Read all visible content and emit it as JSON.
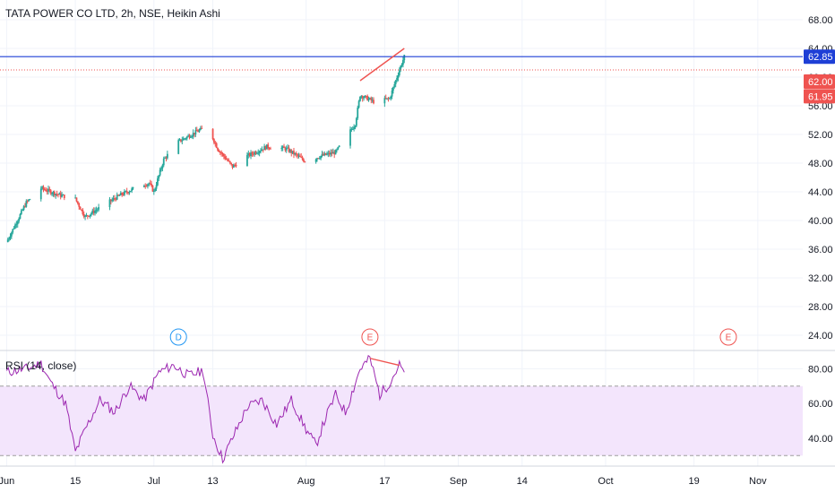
{
  "chart_data": [
    {
      "type": "candlestick",
      "title": "TATA POWER CO LTD, 2h, NSE, Heikin Ashi",
      "ylim": [
        22,
        70
      ],
      "yticks": [
        "24.00",
        "28.00",
        "32.00",
        "36.00",
        "40.00",
        "44.00",
        "48.00",
        "52.00",
        "56.00",
        "60.00",
        "64.00",
        "68.00"
      ],
      "price_levels": [
        {
          "value": 62.85,
          "label": "62.85",
          "color": "#1e3fd6",
          "style": "solid"
        },
        {
          "value": 62.0,
          "label": "62.00",
          "color": "#ef5350",
          "style": "dotted"
        },
        {
          "value": 61.95,
          "label": "61.95",
          "color": "#ef5350",
          "style": "none"
        }
      ],
      "trendline": {
        "from": {
          "date": "Aug 12",
          "value": 59.5
        },
        "to": {
          "date": "Aug 21",
          "value": 64.0
        },
        "color": "#ef5350"
      },
      "events": [
        {
          "label": "D",
          "date": "Jul 6",
          "color": "#2196f3"
        },
        {
          "label": "E",
          "date": "Aug 14",
          "color": "#ef5350"
        },
        {
          "label": "E",
          "date": "Oct 26",
          "color": "#ef5350"
        }
      ],
      "up_color": "#26a69a",
      "down_color": "#ef5350",
      "price_path": [
        {
          "date": "Jun 1",
          "value": 37.0
        },
        {
          "date": "Jun 5",
          "value": 42.5
        },
        {
          "date": "Jun 8",
          "value": 44.5
        },
        {
          "date": "Jun 12",
          "value": 43.5
        },
        {
          "date": "Jun 15",
          "value": 43.0
        },
        {
          "date": "Jun 17",
          "value": 40.5
        },
        {
          "date": "Jun 20",
          "value": 41.8
        },
        {
          "date": "Jun 24",
          "value": 43.5
        },
        {
          "date": "Jun 28",
          "value": 44.8
        },
        {
          "date": "Jun 30",
          "value": 45.2
        },
        {
          "date": "Jul 1",
          "value": 44.0
        },
        {
          "date": "Jul 3",
          "value": 48.5
        },
        {
          "date": "Jul 6",
          "value": 51.0
        },
        {
          "date": "Jul 10",
          "value": 52.5
        },
        {
          "date": "Jul 12",
          "value": 53.0
        },
        {
          "date": "Jul 14",
          "value": 50.0
        },
        {
          "date": "Jul 17",
          "value": 47.5
        },
        {
          "date": "Jul 20",
          "value": 49.0
        },
        {
          "date": "Jul 24",
          "value": 50.3
        },
        {
          "date": "Jul 28",
          "value": 50.0
        },
        {
          "date": "Aug 1",
          "value": 48.2
        },
        {
          "date": "Aug 4",
          "value": 49.0
        },
        {
          "date": "Aug 7",
          "value": 49.5
        },
        {
          "date": "Aug 9",
          "value": 51.5
        },
        {
          "date": "Aug 11",
          "value": 53.5
        },
        {
          "date": "Aug 12",
          "value": 57.5
        },
        {
          "date": "Aug 15",
          "value": 56.5
        },
        {
          "date": "Aug 18",
          "value": 57.0
        },
        {
          "date": "Aug 20",
          "value": 61.0
        },
        {
          "date": "Aug 21",
          "value": 62.85
        }
      ]
    },
    {
      "type": "line",
      "title": "RSI (14, close)",
      "ylim": [
        25,
        90
      ],
      "yticks": [
        "40.00",
        "60.00",
        "80.00"
      ],
      "band": {
        "upper": 70,
        "lower": 30,
        "fill": "#f3e5fc",
        "line_color": "#9e9e9e"
      },
      "line_color": "#9c27b0",
      "trendline": {
        "from": {
          "date": "Aug 14",
          "value": 86
        },
        "to": {
          "date": "Aug 20",
          "value": 82
        },
        "color": "#ef5350"
      },
      "series": [
        {
          "date": "Jun 1",
          "value": 78
        },
        {
          "date": "Jun 5",
          "value": 80
        },
        {
          "date": "Jun 8",
          "value": 83
        },
        {
          "date": "Jun 10",
          "value": 72
        },
        {
          "date": "Jun 13",
          "value": 60
        },
        {
          "date": "Jun 15",
          "value": 32
        },
        {
          "date": "Jun 17",
          "value": 45
        },
        {
          "date": "Jun 20",
          "value": 62
        },
        {
          "date": "Jun 23",
          "value": 55
        },
        {
          "date": "Jun 26",
          "value": 70
        },
        {
          "date": "Jun 29",
          "value": 62
        },
        {
          "date": "Jul 2",
          "value": 78
        },
        {
          "date": "Jul 5",
          "value": 82
        },
        {
          "date": "Jul 8",
          "value": 76
        },
        {
          "date": "Jul 11",
          "value": 79
        },
        {
          "date": "Jul 13",
          "value": 42
        },
        {
          "date": "Jul 15",
          "value": 28
        },
        {
          "date": "Jul 17",
          "value": 40
        },
        {
          "date": "Jul 20",
          "value": 58
        },
        {
          "date": "Jul 23",
          "value": 62
        },
        {
          "date": "Jul 26",
          "value": 48
        },
        {
          "date": "Jul 29",
          "value": 62
        },
        {
          "date": "Aug 1",
          "value": 45
        },
        {
          "date": "Aug 3",
          "value": 36
        },
        {
          "date": "Aug 5",
          "value": 52
        },
        {
          "date": "Aug 7",
          "value": 65
        },
        {
          "date": "Aug 9",
          "value": 55
        },
        {
          "date": "Aug 12",
          "value": 80
        },
        {
          "date": "Aug 14",
          "value": 86
        },
        {
          "date": "Aug 16",
          "value": 65
        },
        {
          "date": "Aug 18",
          "value": 72
        },
        {
          "date": "Aug 20",
          "value": 82
        },
        {
          "date": "Aug 21",
          "value": 78
        }
      ]
    }
  ],
  "x_axis": {
    "labels": [
      {
        "text": "Jun",
        "date": "Jun 1"
      },
      {
        "text": "15",
        "date": "Jun 15"
      },
      {
        "text": "Jul",
        "date": "Jul 1"
      },
      {
        "text": "13",
        "date": "Jul 13"
      },
      {
        "text": "Aug",
        "date": "Aug 1"
      },
      {
        "text": "17",
        "date": "Aug 17"
      },
      {
        "text": "Sep",
        "date": "Sep 1"
      },
      {
        "text": "14",
        "date": "Sep 14"
      },
      {
        "text": "Oct",
        "date": "Oct 1"
      },
      {
        "text": "19",
        "date": "Oct 19"
      },
      {
        "text": "Nov",
        "date": "Nov 1"
      }
    ]
  }
}
